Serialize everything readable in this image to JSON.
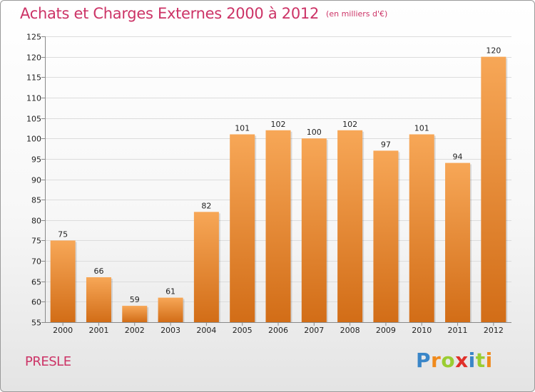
{
  "chart_data": {
    "type": "bar",
    "title": "Achats et Charges Externes 2000 à 2012",
    "subtitle": "(en milliers d'€)",
    "categories": [
      "2000",
      "2001",
      "2002",
      "2003",
      "2004",
      "2005",
      "2006",
      "2007",
      "2008",
      "2009",
      "2010",
      "2011",
      "2012"
    ],
    "values": [
      75,
      66,
      59,
      61,
      82,
      101,
      102,
      100,
      102,
      97,
      101,
      94,
      120
    ],
    "ylim": [
      55,
      125
    ],
    "yticks": [
      55,
      60,
      65,
      70,
      75,
      80,
      85,
      90,
      95,
      100,
      105,
      110,
      115,
      120,
      125
    ],
    "grid": true,
    "legend": "none",
    "colors": {
      "bar_top": "#f7a757",
      "bar_bottom": "#d26d17",
      "title": "#cc3366"
    }
  },
  "footer": {
    "commune": "PRESLE",
    "logo": {
      "text": "Proxiti",
      "letters": [
        {
          "ch": "P",
          "color": "#3a86c8"
        },
        {
          "ch": "r",
          "color": "#f08a1c"
        },
        {
          "ch": "o",
          "color": "#9acd32"
        },
        {
          "ch": "x",
          "color": "#e0302a"
        },
        {
          "ch": "i",
          "color": "#3a86c8"
        },
        {
          "ch": "t",
          "color": "#9acd32"
        },
        {
          "ch": "i",
          "color": "#f08a1c"
        }
      ]
    }
  }
}
